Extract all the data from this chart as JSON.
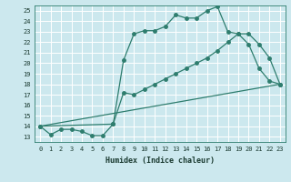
{
  "xlabel": "Humidex (Indice chaleur)",
  "background_color": "#cce8ee",
  "grid_color": "#ffffff",
  "line_color": "#2e7d6e",
  "xlim": [
    -0.5,
    23.5
  ],
  "ylim": [
    12.5,
    25.5
  ],
  "xticks": [
    0,
    1,
    2,
    3,
    4,
    5,
    6,
    7,
    8,
    9,
    10,
    11,
    12,
    13,
    14,
    15,
    16,
    17,
    18,
    19,
    20,
    21,
    22,
    23
  ],
  "yticks": [
    13,
    14,
    15,
    16,
    17,
    18,
    19,
    20,
    21,
    22,
    23,
    24,
    25
  ],
  "series1_x": [
    0,
    1,
    2,
    3,
    4,
    5,
    6,
    7,
    8,
    9,
    10,
    11,
    12,
    13,
    14,
    15,
    16,
    17,
    18,
    19,
    20,
    21,
    22,
    23
  ],
  "series1_y": [
    14.0,
    13.2,
    13.7,
    13.7,
    13.5,
    13.1,
    13.1,
    14.2,
    20.3,
    22.8,
    23.1,
    23.1,
    23.5,
    24.6,
    24.3,
    24.3,
    25.0,
    25.4,
    23.0,
    22.8,
    21.8,
    19.5,
    18.3,
    18.0
  ],
  "series2_x": [
    0,
    7,
    8,
    9,
    10,
    11,
    12,
    13,
    14,
    15,
    16,
    17,
    18,
    19,
    20,
    21,
    22,
    23
  ],
  "series2_y": [
    14.0,
    14.2,
    17.2,
    17.0,
    17.5,
    18.0,
    18.5,
    19.0,
    19.5,
    20.0,
    20.5,
    21.2,
    22.0,
    22.8,
    22.8,
    21.8,
    20.5,
    18.0
  ],
  "series3_x": [
    0,
    23
  ],
  "series3_y": [
    14.0,
    18.0
  ],
  "marker_size": 2.5
}
